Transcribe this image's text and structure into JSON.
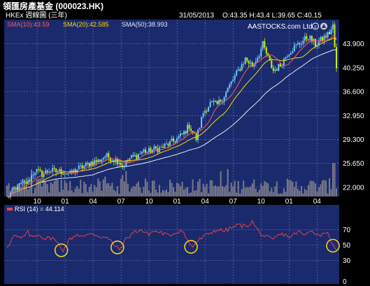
{
  "header": {
    "title": "領匯房產基金 (000023.HK)",
    "subtitle": "HKEx 週線圖 (三年)",
    "date": "31/05/2013",
    "ohlc": "O:43.35 H:43.4 L:39.65 C:40.15",
    "watermark": "AASTOCKS.com Ltd",
    "ma_labels": [
      {
        "text": "SMA(10):43.59",
        "color": "#ff5a5a"
      },
      {
        "text": "SMA(20):42.585",
        "color": "#ffd700"
      },
      {
        "text": "SMA(50):38.993",
        "color": "#e8e8f0"
      }
    ]
  },
  "colors": {
    "background": "#000000",
    "panel": "#1a2a6c",
    "grid": "#6a7ab8",
    "candle_up": "#6ec6ff",
    "candle_down": "#c8f000",
    "volume": "#7a7a88",
    "sma10": "#ff5a5a",
    "sma20": "#ffd700",
    "sma50": "#e8e8f0",
    "rsi": "#ff4040",
    "circle": "#f0d020"
  },
  "chart_data": [
    {
      "type": "candlestick",
      "ylim": [
        20.6,
        47.6
      ],
      "y_ticks": [
        "43.900",
        "40.250",
        "36.600",
        "32.950",
        "29.300",
        "25.650",
        "22.000"
      ],
      "x_ticks": [
        "10",
        "01",
        "04",
        "07",
        "10",
        "01",
        "04",
        "07",
        "10",
        "01",
        "04"
      ],
      "key_points": [
        [
          0,
          20.4
        ],
        [
          4,
          21.6
        ],
        [
          8,
          22.4
        ],
        [
          12,
          22.8
        ],
        [
          16,
          24.6
        ],
        [
          20,
          24.0
        ],
        [
          24,
          24.6
        ],
        [
          28,
          24.4
        ],
        [
          32,
          24.4
        ],
        [
          36,
          24.0
        ],
        [
          40,
          24.8
        ],
        [
          44,
          25.2
        ],
        [
          48,
          25.8
        ],
        [
          52,
          26.0
        ],
        [
          56,
          26.8
        ],
        [
          60,
          26.4
        ],
        [
          64,
          26.0
        ],
        [
          66,
          25.2
        ],
        [
          70,
          26.4
        ],
        [
          74,
          26.8
        ],
        [
          78,
          27.6
        ],
        [
          80,
          27.4
        ],
        [
          84,
          27.8
        ],
        [
          88,
          28.0
        ],
        [
          92,
          28.6
        ],
        [
          96,
          29.2
        ],
        [
          100,
          30.0
        ],
        [
          104,
          31.4
        ],
        [
          106,
          30.4
        ],
        [
          108,
          29.4
        ],
        [
          110,
          31.4
        ],
        [
          112,
          33.4
        ],
        [
          116,
          34.8
        ],
        [
          120,
          34.6
        ],
        [
          124,
          36.0
        ],
        [
          128,
          38.0
        ],
        [
          132,
          39.8
        ],
        [
          136,
          41.6
        ],
        [
          140,
          40.6
        ],
        [
          144,
          42.4
        ],
        [
          146,
          43.8
        ],
        [
          150,
          41.0
        ],
        [
          152,
          39.8
        ],
        [
          156,
          40.6
        ],
        [
          160,
          42.4
        ],
        [
          164,
          43.4
        ],
        [
          168,
          44.2
        ],
        [
          172,
          45.0
        ],
        [
          176,
          43.8
        ],
        [
          180,
          44.6
        ],
        [
          184,
          45.6
        ],
        [
          186,
          46.6
        ],
        [
          187,
          43.4
        ],
        [
          188,
          40.15
        ]
      ],
      "series": [
        {
          "name": "SMA(10)",
          "last": 43.59
        },
        {
          "name": "SMA(20)",
          "last": 42.585
        },
        {
          "name": "SMA(50)",
          "last": 38.993
        }
      ]
    },
    {
      "type": "line",
      "label": "RSI (14) = 44.114",
      "ylim": [
        0,
        100
      ],
      "y_ticks": [
        70,
        50,
        30,
        0
      ],
      "key_points": [
        [
          0,
          48
        ],
        [
          4,
          62
        ],
        [
          8,
          58
        ],
        [
          12,
          66
        ],
        [
          14,
          60
        ],
        [
          18,
          64
        ],
        [
          22,
          58
        ],
        [
          26,
          60
        ],
        [
          28,
          54
        ],
        [
          30,
          50
        ],
        [
          32,
          44
        ],
        [
          34,
          50
        ],
        [
          36,
          58
        ],
        [
          40,
          64
        ],
        [
          44,
          60
        ],
        [
          48,
          66
        ],
        [
          52,
          62
        ],
        [
          56,
          60
        ],
        [
          60,
          54
        ],
        [
          62,
          48
        ],
        [
          64,
          44
        ],
        [
          66,
          50
        ],
        [
          68,
          58
        ],
        [
          72,
          66
        ],
        [
          76,
          70
        ],
        [
          80,
          64
        ],
        [
          84,
          68
        ],
        [
          88,
          66
        ],
        [
          92,
          62
        ],
        [
          96,
          66
        ],
        [
          100,
          70
        ],
        [
          102,
          60
        ],
        [
          104,
          52
        ],
        [
          106,
          48
        ],
        [
          108,
          54
        ],
        [
          112,
          60
        ],
        [
          116,
          66
        ],
        [
          120,
          70
        ],
        [
          124,
          68
        ],
        [
          128,
          72
        ],
        [
          132,
          76
        ],
        [
          136,
          74
        ],
        [
          140,
          80
        ],
        [
          144,
          66
        ],
        [
          148,
          60
        ],
        [
          150,
          58
        ],
        [
          152,
          56
        ],
        [
          154,
          62
        ],
        [
          158,
          64
        ],
        [
          162,
          60
        ],
        [
          166,
          68
        ],
        [
          170,
          62
        ],
        [
          174,
          70
        ],
        [
          178,
          62
        ],
        [
          182,
          68
        ],
        [
          185,
          56
        ],
        [
          187,
          48
        ],
        [
          188,
          44.114
        ]
      ],
      "circled_points": [
        31,
        63,
        105,
        186
      ]
    }
  ]
}
